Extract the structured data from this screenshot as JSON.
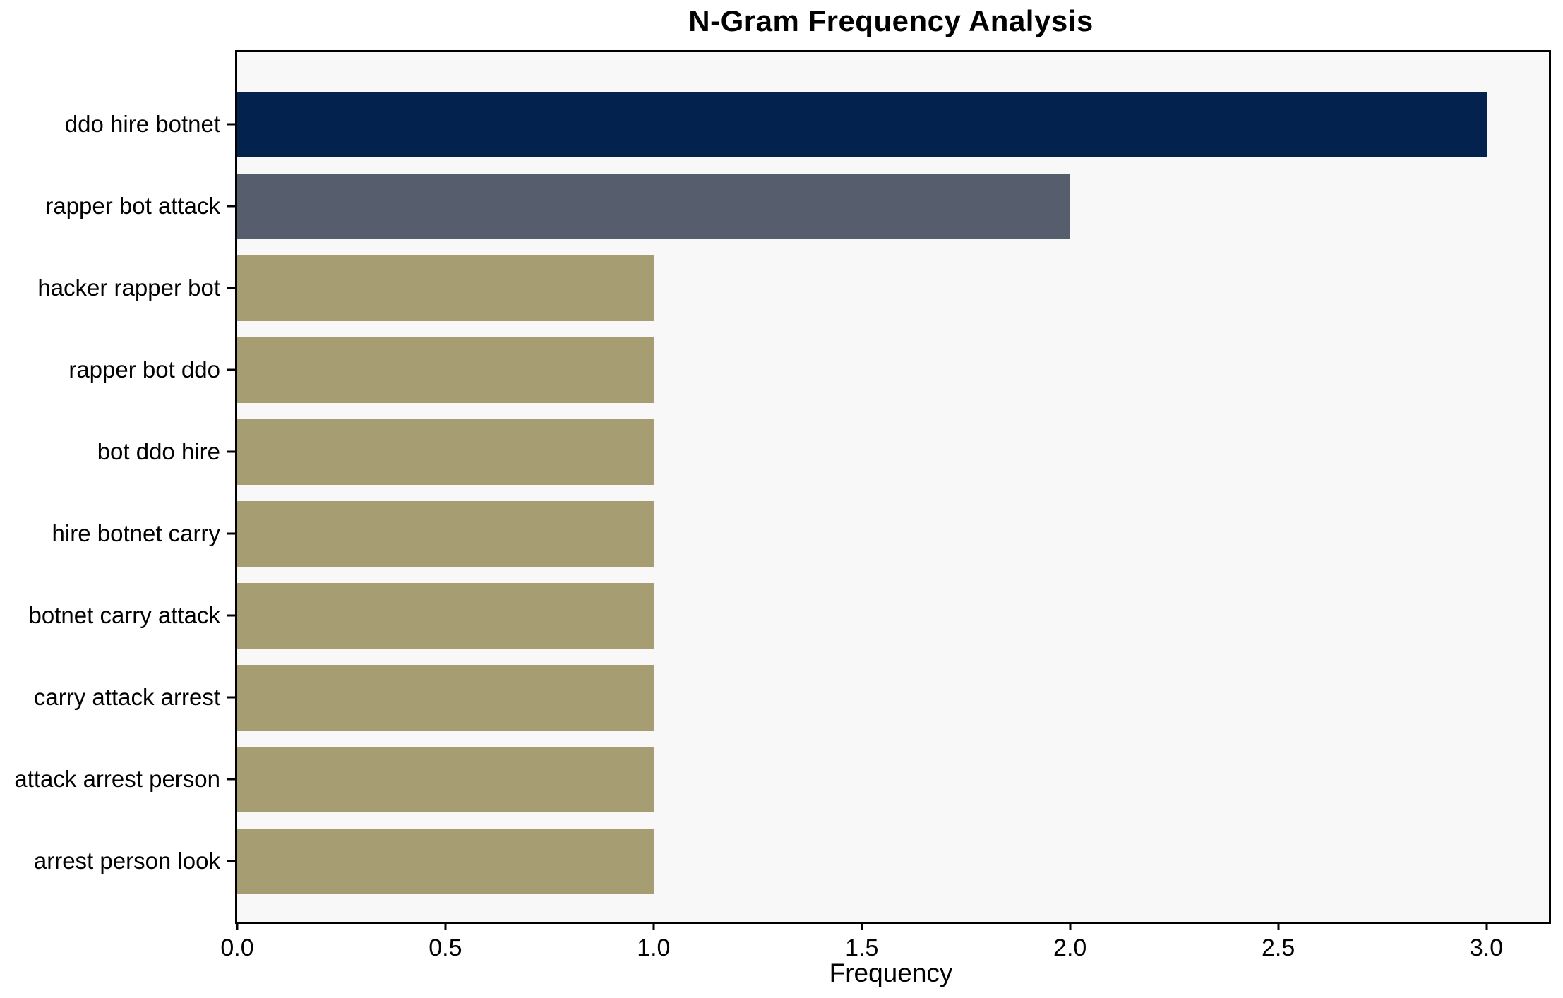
{
  "title": "N-Gram Frequency Analysis",
  "chart_data": {
    "type": "bar",
    "orientation": "horizontal",
    "title": "N-Gram Frequency Analysis",
    "xlabel": "Frequency",
    "ylabel": "",
    "categories": [
      "ddo hire botnet",
      "rapper bot attack",
      "hacker rapper bot",
      "rapper bot ddo",
      "bot ddo hire",
      "hire botnet carry",
      "botnet carry attack",
      "carry attack arrest",
      "attack arrest person",
      "arrest person look"
    ],
    "values": [
      3,
      2,
      1,
      1,
      1,
      1,
      1,
      1,
      1,
      1
    ],
    "bar_colors": [
      "#03234e",
      "#565d6c",
      "#a69d72",
      "#a69d72",
      "#a69d72",
      "#a69d72",
      "#a69d72",
      "#a69d72",
      "#a69d72",
      "#a69d72"
    ],
    "x_ticks": [
      "0.0",
      "0.5",
      "1.0",
      "1.5",
      "2.0",
      "2.5",
      "3.0"
    ],
    "xlim": [
      0,
      3.15
    ],
    "grid": false,
    "legend_position": "none",
    "plot_background": "#f8f8f8",
    "figure_background": "#ffffff"
  }
}
